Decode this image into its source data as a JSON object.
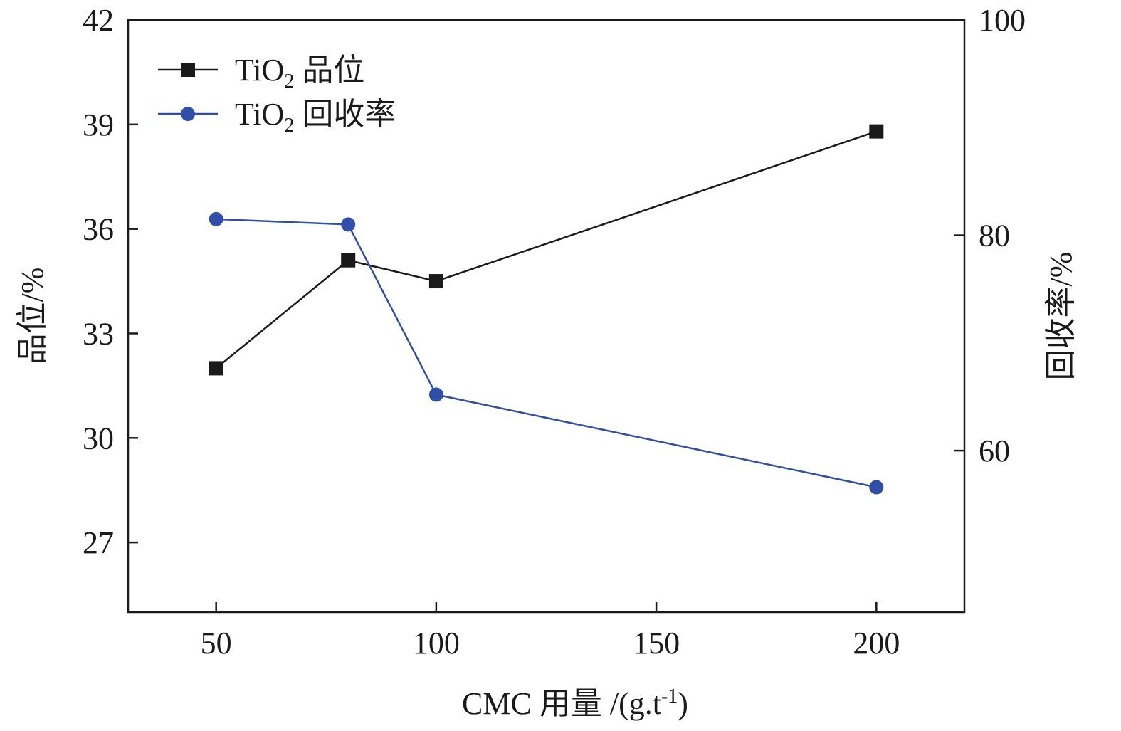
{
  "chart_data": {
    "type": "line",
    "title": "",
    "xlabel": "CMC 用量 /(g.t",
    "xlabel_sup": "-1",
    "xlabel_end": ")",
    "ylabel_left": "品位/%",
    "ylabel_right": "回收率/%",
    "xlim": [
      30,
      220
    ],
    "ylim_left": [
      25,
      42
    ],
    "ylim_right": [
      45,
      100
    ],
    "x_ticks": [
      50,
      100,
      150,
      200
    ],
    "y_left_ticks": [
      27,
      30,
      33,
      36,
      39,
      42
    ],
    "y_right_ticks": [
      60,
      80,
      100
    ],
    "grid": false,
    "legend_position": "top-left",
    "series": [
      {
        "name": "TiO",
        "name_sub": "2",
        "name_rest": " 品位",
        "axis": "left",
        "marker": "square",
        "color": "#1a1a1a",
        "x": [
          50,
          80,
          100,
          200
        ],
        "values": [
          32.0,
          35.1,
          34.5,
          38.8
        ]
      },
      {
        "name": "TiO",
        "name_sub": "2",
        "name_rest": " 回收率",
        "axis": "right",
        "marker": "circle",
        "color": "#2f4fa8",
        "x": [
          50,
          80,
          100,
          200
        ],
        "values": [
          81.5,
          81.0,
          65.2,
          56.6
        ]
      }
    ]
  }
}
